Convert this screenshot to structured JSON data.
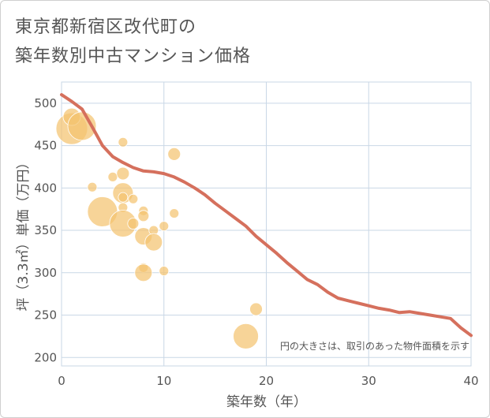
{
  "chart_data": {
    "type": "scatter",
    "title_lines": [
      "東京都新宿区改代町の",
      "築年数別中古マンション価格"
    ],
    "xlabel": "築年数（年）",
    "ylabel": "坪（3.3㎡）単価（万円）",
    "xlim": [
      0,
      40
    ],
    "ylim": [
      190,
      525
    ],
    "x_ticks": [
      0,
      10,
      20,
      30,
      40
    ],
    "y_ticks": [
      200,
      250,
      300,
      350,
      400,
      450,
      500
    ],
    "grid": true,
    "annotation": "円の大きさは、取引のあった物件面積を示す",
    "colors": {
      "bubble": "#f4c470",
      "trend": "#d5705d",
      "grid": "#c9d7e6"
    },
    "trend_line": {
      "x": [
        0,
        1,
        2,
        3,
        4,
        5,
        6,
        7,
        8,
        9,
        10,
        11,
        12,
        13,
        14,
        15,
        16,
        17,
        18,
        19,
        20,
        21,
        22,
        23,
        24,
        25,
        26,
        27,
        28,
        29,
        30,
        31,
        32,
        33,
        34,
        35,
        36,
        37,
        38,
        39,
        40
      ],
      "y": [
        510,
        502,
        493,
        472,
        450,
        437,
        430,
        424,
        420,
        419,
        417,
        413,
        407,
        400,
        392,
        382,
        373,
        364,
        355,
        343,
        333,
        323,
        312,
        302,
        292,
        286,
        277,
        270,
        267,
        264,
        261,
        258,
        256,
        253,
        254,
        252,
        250,
        248,
        246,
        235,
        226
      ]
    },
    "points": [
      {
        "x": 1,
        "y": 470,
        "size": 20
      },
      {
        "x": 1,
        "y": 484,
        "size": 11
      },
      {
        "x": 2,
        "y": 473,
        "size": 18
      },
      {
        "x": 3,
        "y": 401,
        "size": 6
      },
      {
        "x": 4,
        "y": 372,
        "size": 19
      },
      {
        "x": 5,
        "y": 413,
        "size": 6
      },
      {
        "x": 6,
        "y": 454,
        "size": 6
      },
      {
        "x": 6,
        "y": 417,
        "size": 8
      },
      {
        "x": 6,
        "y": 394,
        "size": 13
      },
      {
        "x": 6,
        "y": 389,
        "size": 6
      },
      {
        "x": 6,
        "y": 377,
        "size": 6
      },
      {
        "x": 6,
        "y": 358,
        "size": 17
      },
      {
        "x": 7,
        "y": 387,
        "size": 6
      },
      {
        "x": 7,
        "y": 358,
        "size": 7
      },
      {
        "x": 8,
        "y": 373,
        "size": 6
      },
      {
        "x": 8,
        "y": 367,
        "size": 7
      },
      {
        "x": 8,
        "y": 343,
        "size": 11
      },
      {
        "x": 8,
        "y": 306,
        "size": 6
      },
      {
        "x": 8,
        "y": 300,
        "size": 11
      },
      {
        "x": 9,
        "y": 350,
        "size": 6
      },
      {
        "x": 9,
        "y": 336,
        "size": 11
      },
      {
        "x": 10,
        "y": 355,
        "size": 6
      },
      {
        "x": 10,
        "y": 302,
        "size": 6
      },
      {
        "x": 11,
        "y": 440,
        "size": 8
      },
      {
        "x": 11,
        "y": 370,
        "size": 6
      },
      {
        "x": 18,
        "y": 225,
        "size": 16
      },
      {
        "x": 19,
        "y": 257,
        "size": 8
      }
    ]
  }
}
